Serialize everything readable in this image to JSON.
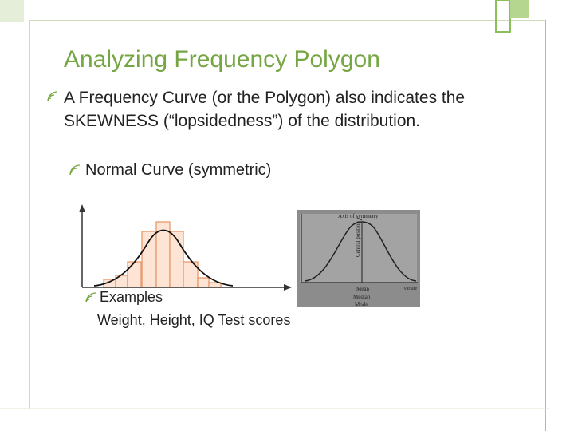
{
  "title": "Analyzing Frequency Polygon",
  "bullets": [
    {
      "text": "A Frequency Curve (or the Polygon) also indicates the SKEWNESS (“lopsidedness”) of the distribution.",
      "sub_bullets": [
        {
          "text": "Normal Curve (symmetric)"
        }
      ]
    }
  ],
  "examples": {
    "heading": "Examples",
    "text": "Weight, Height, IQ Test scores"
  },
  "figure_labels": {
    "axis": "Axis of symmetry",
    "central": "Central position",
    "mean": "Mean",
    "median": "Median",
    "mode": "Mode",
    "variate": "Variate"
  }
}
